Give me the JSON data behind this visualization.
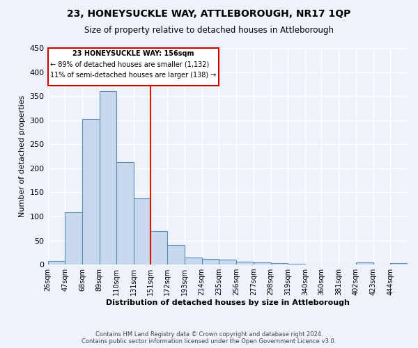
{
  "title": "23, HONEYSUCKLE WAY, ATTLEBOROUGH, NR17 1QP",
  "subtitle": "Size of property relative to detached houses in Attleborough",
  "xlabel": "Distribution of detached houses by size in Attleborough",
  "ylabel": "Number of detached properties",
  "footer_line1": "Contains HM Land Registry data © Crown copyright and database right 2024.",
  "footer_line2": "Contains public sector information licensed under the Open Government Licence v3.0.",
  "bin_labels": [
    "26sqm",
    "47sqm",
    "68sqm",
    "89sqm",
    "110sqm",
    "131sqm",
    "151sqm",
    "172sqm",
    "193sqm",
    "214sqm",
    "235sqm",
    "256sqm",
    "277sqm",
    "298sqm",
    "319sqm",
    "340sqm",
    "360sqm",
    "381sqm",
    "402sqm",
    "423sqm",
    "444sqm"
  ],
  "bar_values": [
    8,
    108,
    303,
    360,
    213,
    138,
    70,
    40,
    14,
    11,
    10,
    6,
    5,
    3,
    2,
    0,
    0,
    0,
    4,
    0,
    3
  ],
  "bin_edges": [
    26,
    47,
    68,
    89,
    110,
    131,
    151,
    172,
    193,
    214,
    235,
    256,
    277,
    298,
    319,
    340,
    360,
    381,
    402,
    423,
    444,
    465
  ],
  "bar_color": "#c9d9ed",
  "bar_edge_color": "#5b8db8",
  "red_line_x": 151,
  "annotation_text_line1": "23 HONEYSUCKLE WAY: 156sqm",
  "annotation_text_line2": "← 89% of detached houses are smaller (1,132)",
  "annotation_text_line3": "11% of semi-detached houses are larger (138) →",
  "annotation_box_color": "#cc0000",
  "ylim": [
    0,
    450
  ],
  "background_color": "#eef2fb",
  "grid_color": "#ffffff"
}
